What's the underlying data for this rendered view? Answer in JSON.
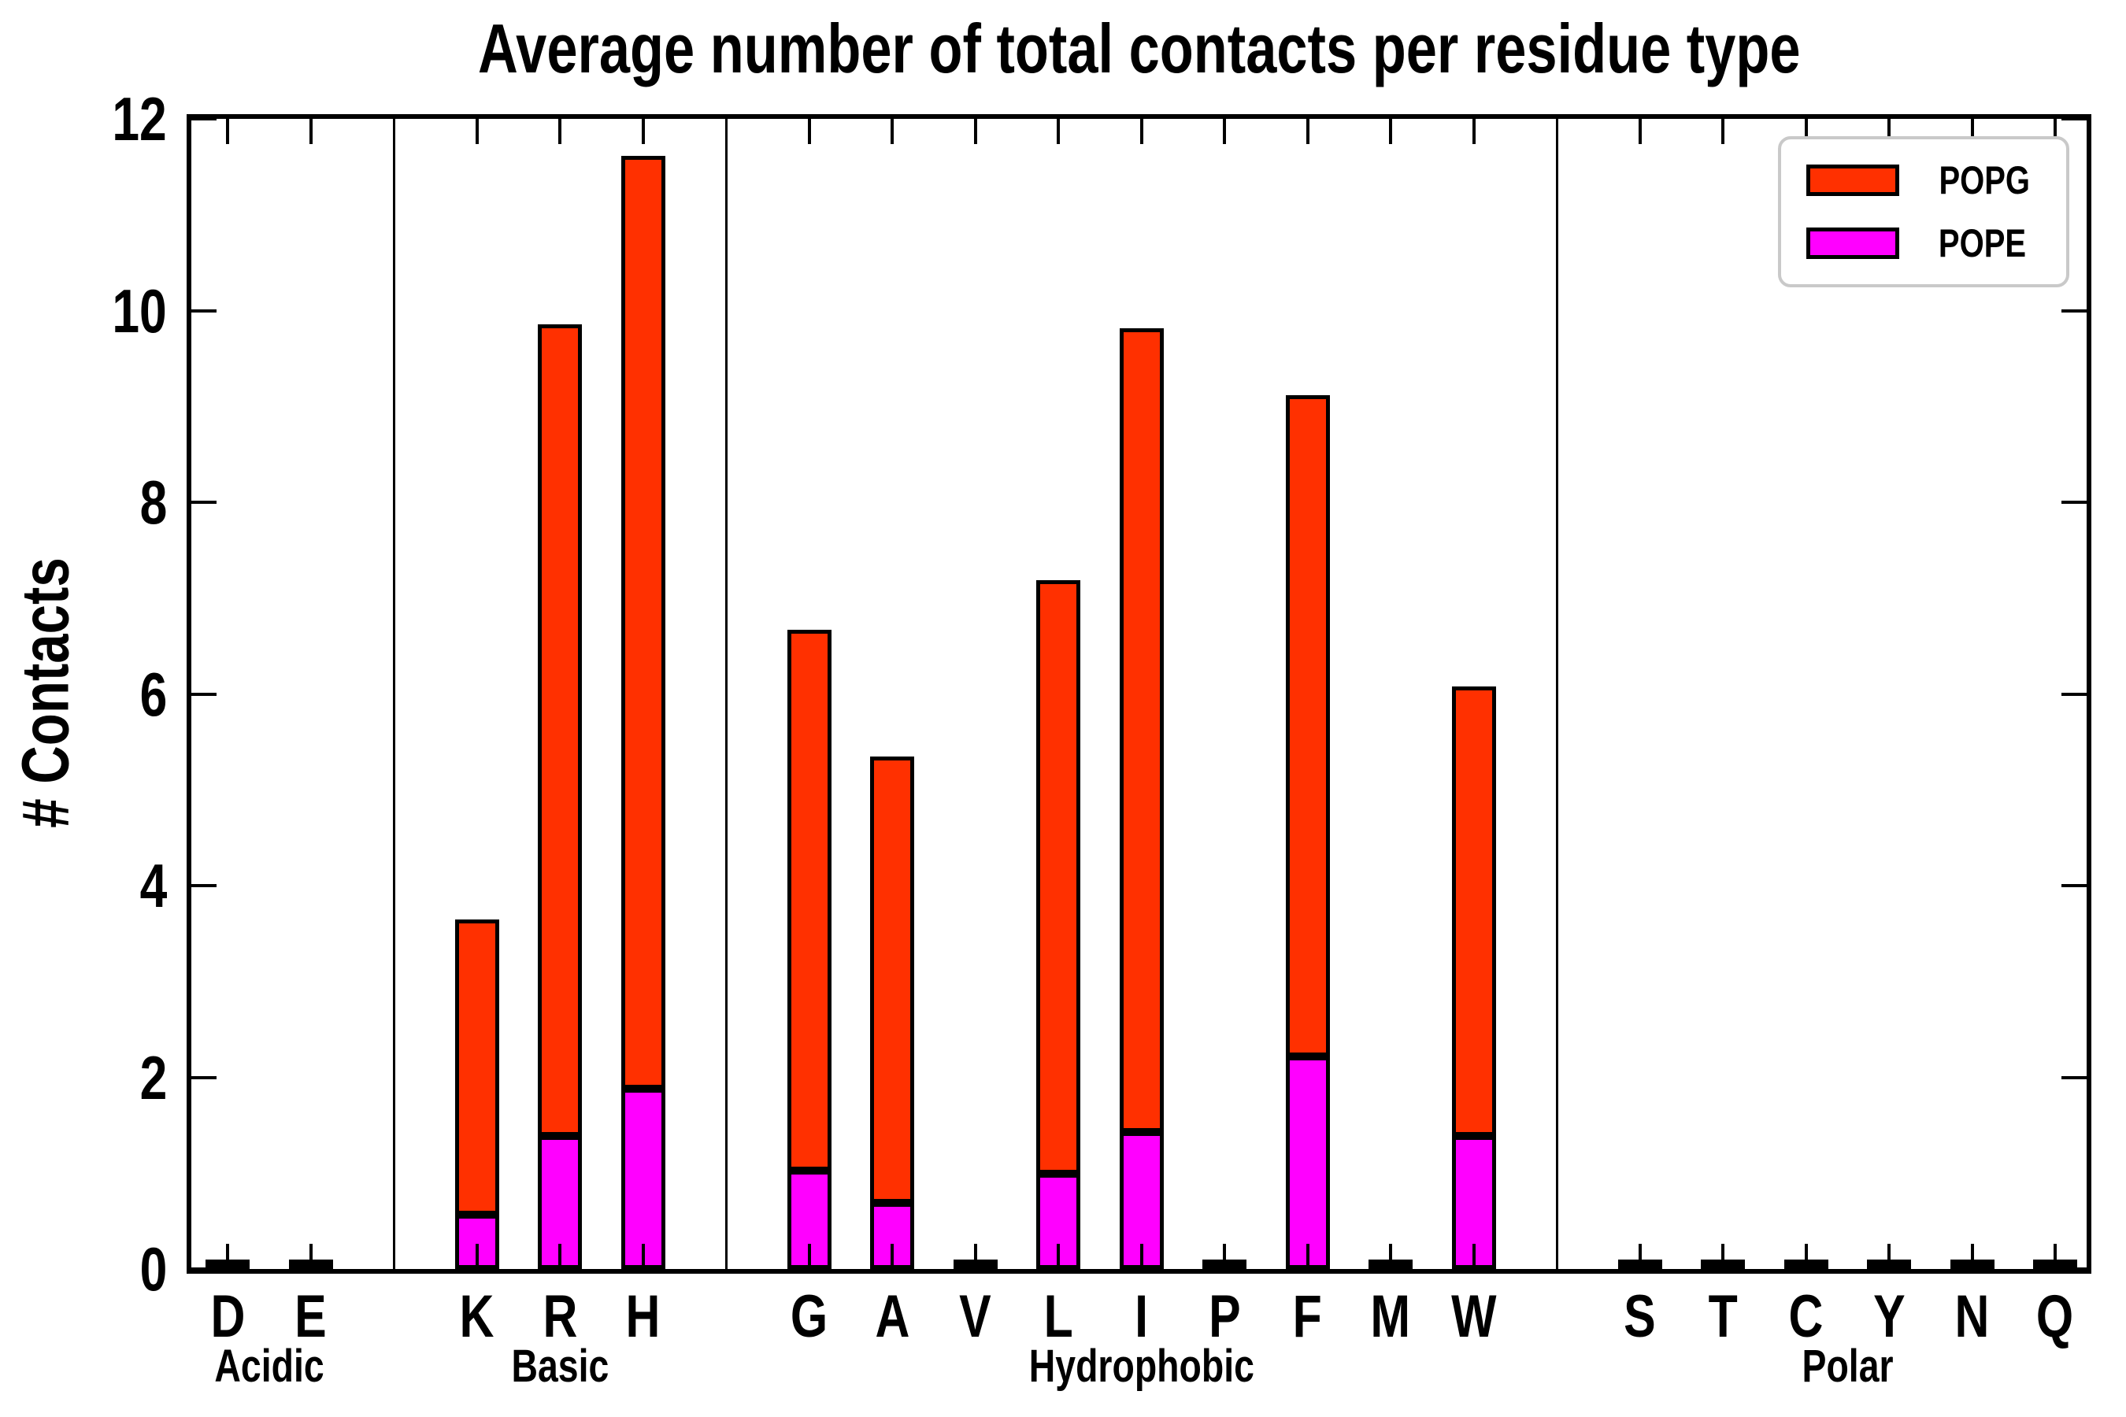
{
  "title": "Average number of total contacts per residue type",
  "y_axis": {
    "label": "# Contacts",
    "tick_labels": [
      "0",
      "2",
      "4",
      "6",
      "8",
      "10",
      "12"
    ],
    "tick_values": [
      0,
      2,
      4,
      6,
      8,
      10,
      12
    ],
    "limits": [
      0,
      12
    ]
  },
  "legend": {
    "position": "upper right",
    "entries": [
      {
        "label": "POPG",
        "color": "#ff3000"
      },
      {
        "label": "POPE",
        "color": "#ff00ff"
      }
    ]
  },
  "colors": {
    "POPG": "#ff3000",
    "POPE": "#ff00ff",
    "spine": "#000000",
    "legend_border": "#c9c9c9",
    "background": "#ffffff"
  },
  "chart_data": {
    "type": "bar",
    "stacked": true,
    "orientation": "vertical",
    "categories": [
      "D",
      "E",
      "K",
      "R",
      "H",
      "G",
      "A",
      "V",
      "L",
      "I",
      "P",
      "F",
      "M",
      "W",
      "S",
      "T",
      "C",
      "Y",
      "N",
      "Q"
    ],
    "groups": [
      {
        "label": "Acidic",
        "residues": [
          "D",
          "E"
        ]
      },
      {
        "label": "Basic",
        "residues": [
          "K",
          "R",
          "H"
        ]
      },
      {
        "label": "Hydrophobic",
        "residues": [
          "G",
          "A",
          "V",
          "L",
          "I",
          "P",
          "F",
          "M",
          "W"
        ]
      },
      {
        "label": "Polar",
        "residues": [
          "S",
          "T",
          "C",
          "Y",
          "N",
          "Q"
        ]
      }
    ],
    "series": [
      {
        "name": "POPE",
        "color": "#ff00ff",
        "values": [
          0.02,
          0.02,
          0.57,
          1.39,
          1.88,
          1.03,
          0.69,
          0.02,
          0.99,
          1.43,
          0.02,
          2.22,
          0.02,
          1.39,
          0.02,
          0.02,
          0.02,
          0.02,
          0.02,
          0.02
        ]
      },
      {
        "name": "POPG",
        "color": "#ff3000",
        "values": [
          0.03,
          0.03,
          3.08,
          8.47,
          9.73,
          5.64,
          4.66,
          0.03,
          6.19,
          8.39,
          0.03,
          6.9,
          0.03,
          4.69,
          0.03,
          0.03,
          0.03,
          0.03,
          0.03,
          0.03
        ]
      }
    ],
    "stacked_totals": [
      0.05,
      0.05,
      3.65,
      9.86,
      11.61,
      6.67,
      5.35,
      0.05,
      7.18,
      9.82,
      0.05,
      9.12,
      0.05,
      6.08,
      0.05,
      0.05,
      0.05,
      0.05,
      0.05,
      0.05
    ],
    "title": "Average number of total contacts per residue type",
    "xlabel": "",
    "ylabel": "# Contacts",
    "ylim": [
      0,
      12
    ],
    "yticks": [
      0,
      2,
      4,
      6,
      8,
      10,
      12
    ],
    "grid": false,
    "legend_position": "upper right",
    "ticks_direction": "in",
    "group_separator_lines": true
  }
}
